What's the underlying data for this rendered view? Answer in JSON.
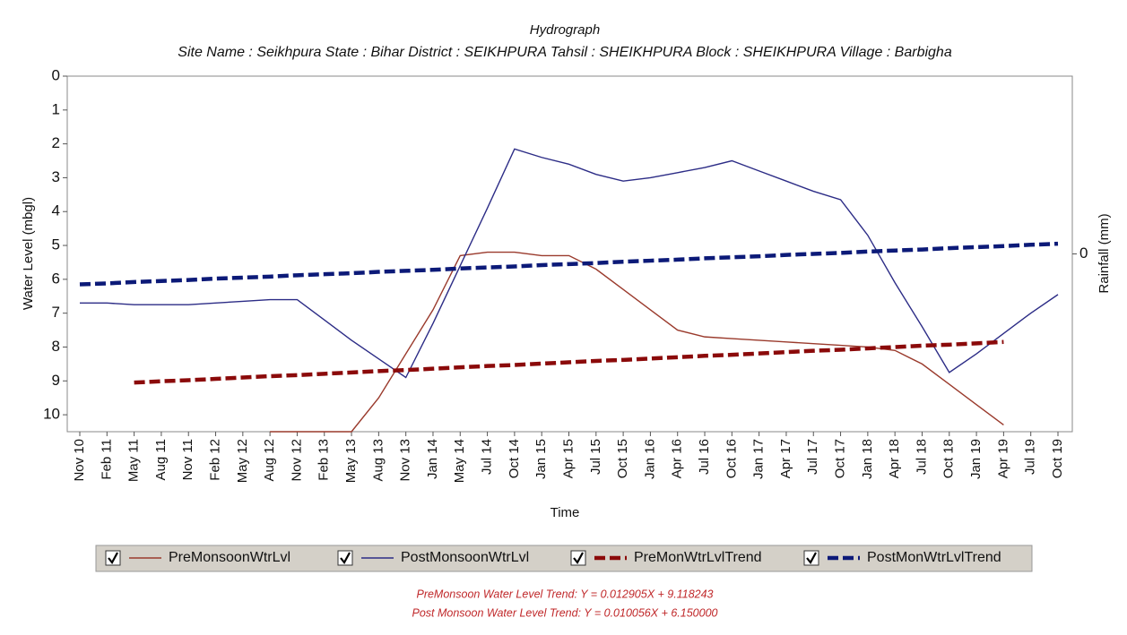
{
  "chart_data": {
    "type": "line",
    "title": "Hydrograph",
    "subtitle": "Site Name : Seikhpura  State : Bihar District : SEIKHPURA  Tahsil : SHEIKHPURA  Block : SHEIKHPURA Village : Barbigha",
    "x_label": "Time",
    "y_label": "Water Level (mbgl)",
    "y2_label": "Rainfall (mm)",
    "categories": [
      "Nov 10",
      "Feb 11",
      "May 11",
      "Aug 11",
      "Nov 11",
      "Feb 12",
      "May 12",
      "Aug 12",
      "Nov 12",
      "Feb 13",
      "May 13",
      "Aug 13",
      "Nov 13",
      "Jan 14",
      "May 14",
      "Jul 14",
      "Oct 14",
      "Jan 15",
      "Apr 15",
      "Jul 15",
      "Oct 15",
      "Jan 16",
      "Apr 16",
      "Jul 16",
      "Oct 16",
      "Jan 17",
      "Apr 17",
      "Jul 17",
      "Oct 17",
      "Jan 18",
      "Apr 18",
      "Jul 18",
      "Oct 18",
      "Jan 19",
      "Apr 19",
      "Jul 19",
      "Oct 19"
    ],
    "series": [
      {
        "name": "PreMonsoonWtrLvl",
        "color": "#9a3a2c",
        "dashed": false,
        "values": [
          null,
          null,
          null,
          null,
          null,
          null,
          null,
          10.5,
          10.5,
          10.5,
          10.5,
          9.5,
          8.2,
          6.9,
          5.3,
          5.2,
          5.2,
          5.3,
          5.3,
          5.7,
          6.3,
          6.9,
          7.5,
          7.7,
          7.75,
          7.8,
          7.85,
          7.9,
          7.95,
          8.0,
          8.1,
          8.5,
          9.1,
          9.7,
          10.3,
          null,
          null
        ]
      },
      {
        "name": "PostMonsoonWtrLvl",
        "color": "#2c2c86",
        "dashed": false,
        "values": [
          6.7,
          6.7,
          6.75,
          6.75,
          6.75,
          6.7,
          6.65,
          6.6,
          6.6,
          7.2,
          7.8,
          8.35,
          8.9,
          7.3,
          5.6,
          3.9,
          2.15,
          2.4,
          2.6,
          2.9,
          3.1,
          3.0,
          2.85,
          2.7,
          2.5,
          2.8,
          3.1,
          3.4,
          3.65,
          4.7,
          6.1,
          7.4,
          8.75,
          8.2,
          7.6,
          7.0,
          6.45
        ]
      },
      {
        "name": "PreMonWtrLvlTrend",
        "color": "#8b0a0a",
        "dashed": true,
        "values": [
          null,
          null,
          9.05,
          9.01,
          8.98,
          8.94,
          8.9,
          8.86,
          8.83,
          8.79,
          8.75,
          8.71,
          8.68,
          8.64,
          8.6,
          8.56,
          8.53,
          8.49,
          8.45,
          8.41,
          8.38,
          8.34,
          8.3,
          8.26,
          8.23,
          8.19,
          8.15,
          8.11,
          8.08,
          8.04,
          8.0,
          7.96,
          7.93,
          7.89,
          7.85,
          null,
          null
        ]
      },
      {
        "name": "PostMonWtrLvlTrend",
        "color": "#0c1a78",
        "dashed": true,
        "values": [
          6.15,
          6.12,
          6.08,
          6.05,
          6.02,
          5.98,
          5.95,
          5.92,
          5.88,
          5.85,
          5.82,
          5.78,
          5.75,
          5.72,
          5.68,
          5.65,
          5.62,
          5.58,
          5.55,
          5.52,
          5.48,
          5.45,
          5.42,
          5.38,
          5.35,
          5.32,
          5.28,
          5.25,
          5.22,
          5.18,
          5.15,
          5.12,
          5.08,
          5.05,
          5.02,
          4.98,
          4.95
        ]
      }
    ],
    "ylim": [
      0,
      10.5
    ],
    "yticks": [
      0,
      1,
      2,
      3,
      4,
      5,
      6,
      7,
      8,
      9,
      10
    ],
    "y_inverted": true,
    "y2lim": [
      -1,
      1
    ],
    "y2ticks": [
      0
    ],
    "notes": [
      {
        "text": "PreMonsoon Water Level Trend: Y = 0.012905X + 9.118243",
        "color": "#c0282a"
      },
      {
        "text": "Post Monsoon Water Level Trend: Y = 0.010056X + 6.150000",
        "color": "#c0282a"
      }
    ]
  }
}
